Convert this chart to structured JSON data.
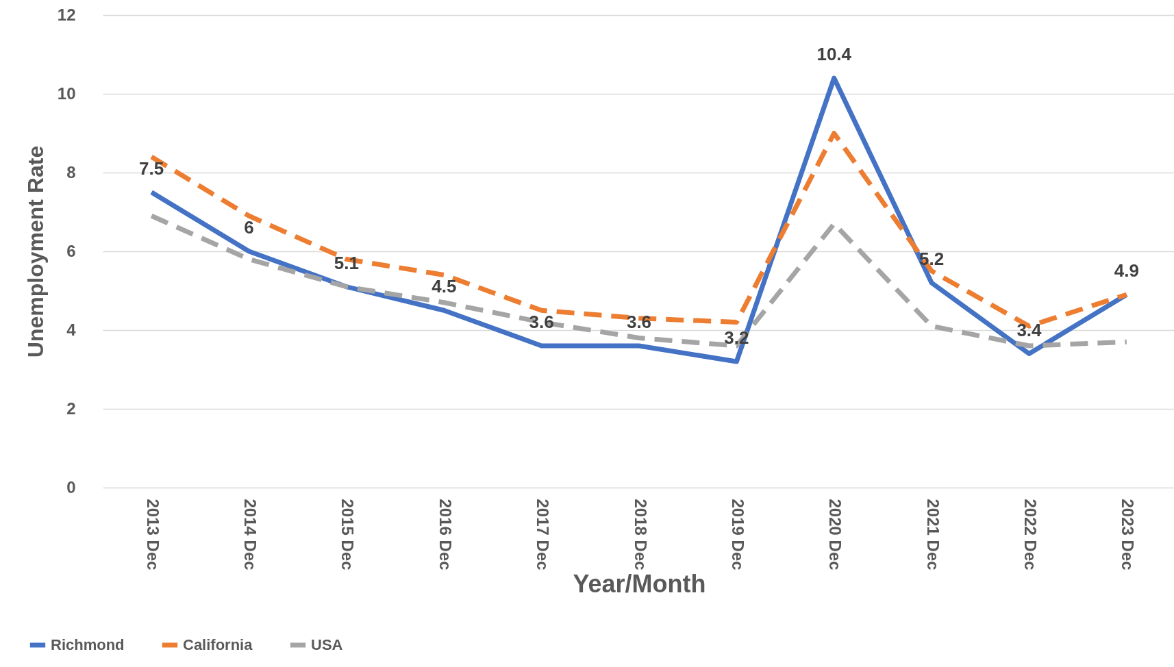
{
  "chart_data": {
    "type": "line",
    "xlabel": "Year/Month",
    "ylabel": "Unemployment Rate",
    "categories": [
      "2013 Dec",
      "2014 Dec",
      "2015 Dec",
      "2016 Dec",
      "2017 Dec",
      "2018 Dec",
      "2019 Dec",
      "2020 Dec",
      "2021 Dec",
      "2022 Dec",
      "2023 Dec"
    ],
    "series": [
      {
        "name": "Richmond",
        "color": "#4472c4",
        "line_style": "solid",
        "values": [
          7.5,
          6,
          5.1,
          4.5,
          3.6,
          3.6,
          3.2,
          10.4,
          5.2,
          3.4,
          4.9
        ],
        "value_labels": [
          "7.5",
          "6",
          "5.1",
          "4.5",
          "3.6",
          "3.6",
          "3.2",
          "10.4",
          "5.2",
          "3.4",
          "4.9"
        ]
      },
      {
        "name": "California",
        "color": "#ed7d31",
        "line_style": "dashed",
        "values": [
          8.4,
          6.9,
          5.8,
          5.4,
          4.5,
          4.3,
          4.2,
          9.0,
          5.5,
          4.1,
          4.9
        ]
      },
      {
        "name": "USA",
        "color": "#a5a5a5",
        "line_style": "dashed",
        "values": [
          6.9,
          5.8,
          5.1,
          4.7,
          4.2,
          3.8,
          3.6,
          6.7,
          4.1,
          3.6,
          3.7
        ]
      }
    ],
    "ylim": [
      0,
      12
    ],
    "yticks": [
      0,
      2,
      4,
      6,
      8,
      10,
      12
    ],
    "grid": "y",
    "legend": "bottom left"
  }
}
